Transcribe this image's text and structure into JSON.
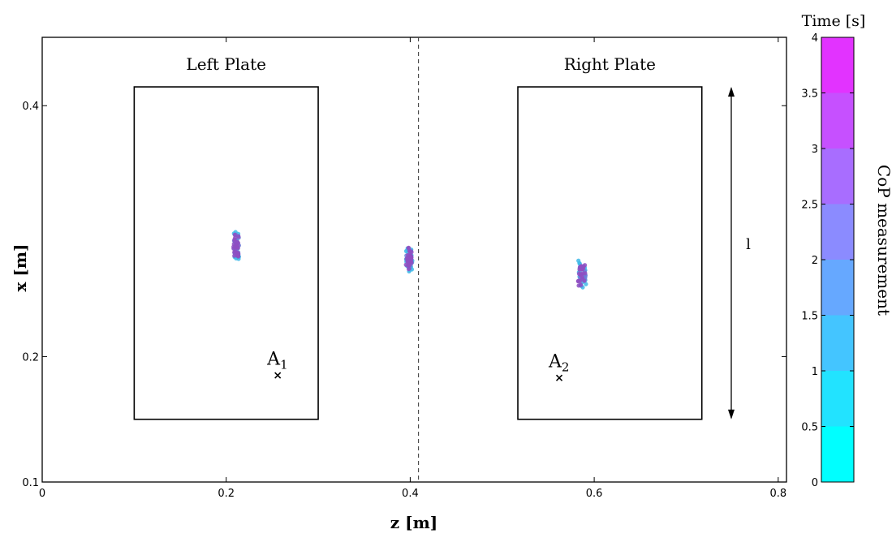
{
  "chart_data": {
    "type": "scatter",
    "title": "",
    "xlabel": "z [m]",
    "ylabel": "x [m]",
    "xlim": [
      0,
      0.8
    ],
    "ylim": [
      0.1,
      0.4
    ],
    "xticks": [
      0,
      0.2,
      0.4,
      0.6,
      0.8
    ],
    "xtick_labels": [
      "0",
      "0.2",
      "0.4",
      "0.6",
      "0.8"
    ],
    "yticks": [
      0.1,
      0.2,
      0.4
    ],
    "ytick_labels": [
      "0.1",
      "0.2",
      "0.4"
    ],
    "grid": false,
    "plates": [
      {
        "name": "Left Plate",
        "z_range": [
          0.1,
          0.3
        ],
        "x_range": [
          0.15,
          0.415
        ]
      },
      {
        "name": "Right Plate",
        "z_range": [
          0.517,
          0.717
        ],
        "x_range": [
          0.15,
          0.415
        ]
      }
    ],
    "divider_z": 0.409,
    "anchor_points": [
      {
        "label": "A",
        "subscript": "1",
        "z": 0.256,
        "x": 0.185
      },
      {
        "label": "A",
        "subscript": "2",
        "z": 0.562,
        "x": 0.183
      }
    ],
    "dimension_arrow": {
      "z": 0.749,
      "x_range": [
        0.15,
        0.415
      ],
      "label": "l"
    },
    "clusters": [
      {
        "name": "left",
        "center_z": 0.211,
        "center_x": 0.2885,
        "spread_z": 0.003,
        "spread_x": 0.012
      },
      {
        "name": "middle",
        "center_z": 0.399,
        "center_x": 0.2785,
        "spread_z": 0.0035,
        "spread_x": 0.012
      },
      {
        "name": "right",
        "center_z": 0.587,
        "center_x": 0.2655,
        "spread_z": 0.004,
        "spread_x": 0.012
      }
    ],
    "colorbar": {
      "title": "Time [s]",
      "label": "CoP measurement",
      "min": 0,
      "max": 4,
      "ticks": [
        0,
        0.5,
        1,
        1.5,
        2,
        2.5,
        3,
        3.5,
        4
      ],
      "tick_labels": [
        "0",
        "0.5",
        "1",
        "1.5",
        "2",
        "2.5",
        "3",
        "3.5",
        "4"
      ],
      "colors": [
        "#00ffff",
        "#22e3ff",
        "#44c5ff",
        "#66a8ff",
        "#8b8bff",
        "#a86dff",
        "#c650ff",
        "#e233ff"
      ]
    }
  }
}
